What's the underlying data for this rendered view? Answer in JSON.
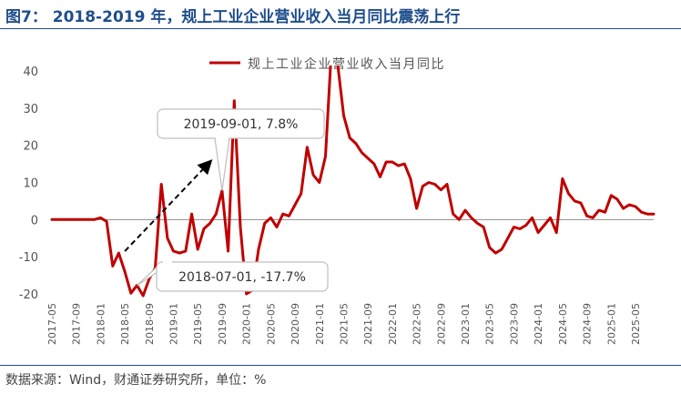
{
  "header": {
    "title": "图7： 2018-2019 年，规上工业企业营业收入当月同比震荡上行"
  },
  "footer": {
    "source": "数据来源：Wind，财通证券研究所，单位：%"
  },
  "colors": {
    "series": "#c00000",
    "title": "#1f4e8c",
    "text": "#555555",
    "callout_border": "#bfbfbf"
  },
  "chart_data": {
    "type": "line",
    "title": "",
    "xlabel": "",
    "ylabel": "",
    "ylim": [
      -20,
      40
    ],
    "yticks": [
      -20,
      -10,
      0,
      10,
      20,
      30,
      40
    ],
    "grid": false,
    "legend_position": "top",
    "xticks": [
      "2017-05",
      "2017-09",
      "2018-01",
      "2018-05",
      "2018-09",
      "2019-01",
      "2019-05",
      "2019-09",
      "2020-01",
      "2020-05",
      "2020-09",
      "2021-01",
      "2021-05",
      "2021-09",
      "2022-01",
      "2022-05",
      "2022-09",
      "2023-01",
      "2023-05",
      "2023-09",
      "2024-01",
      "2024-05",
      "2024-09",
      "2025-01",
      "2025-05"
    ],
    "series": [
      {
        "name": "规上工业企业营业收入当月同比",
        "color": "#c00000",
        "points": [
          [
            "2017-05",
            0
          ],
          [
            "2017-06",
            0
          ],
          [
            "2017-07",
            0
          ],
          [
            "2017-08",
            0
          ],
          [
            "2017-09",
            0
          ],
          [
            "2017-10",
            0
          ],
          [
            "2017-11",
            0
          ],
          [
            "2017-12",
            0
          ],
          [
            "2018-01",
            0.5
          ],
          [
            "2018-02",
            -0.5
          ],
          [
            "2018-03",
            -12.5
          ],
          [
            "2018-04",
            -9
          ],
          [
            "2018-05",
            -14
          ],
          [
            "2018-06",
            -19.8
          ],
          [
            "2018-07",
            -17.7
          ],
          [
            "2018-08",
            -20.5
          ],
          [
            "2018-09",
            -16
          ],
          [
            "2018-10",
            -13
          ],
          [
            "2018-11",
            9.5
          ],
          [
            "2018-12",
            -5
          ],
          [
            "2019-01",
            -8.5
          ],
          [
            "2019-02",
            -9
          ],
          [
            "2019-03",
            -8.5
          ],
          [
            "2019-04",
            1.5
          ],
          [
            "2019-05",
            -8
          ],
          [
            "2019-06",
            -2.5
          ],
          [
            "2019-07",
            -1
          ],
          [
            "2019-08",
            1.5
          ],
          [
            "2019-09",
            7.8
          ],
          [
            "2019-10",
            -8.5
          ],
          [
            "2019-11",
            32
          ],
          [
            "2019-12",
            -2
          ],
          [
            "2020-01",
            -20
          ],
          [
            "2020-02",
            -19
          ],
          [
            "2020-03",
            -8
          ],
          [
            "2020-04",
            -1
          ],
          [
            "2020-05",
            0.5
          ],
          [
            "2020-06",
            -2
          ],
          [
            "2020-07",
            1.5
          ],
          [
            "2020-08",
            1
          ],
          [
            "2020-09",
            4
          ],
          [
            "2020-10",
            7
          ],
          [
            "2020-11",
            19.5
          ],
          [
            "2020-12",
            12
          ],
          [
            "2021-01",
            10
          ],
          [
            "2021-02",
            17
          ],
          [
            "2021-03",
            46
          ],
          [
            "2021-04",
            42
          ],
          [
            "2021-05",
            28
          ],
          [
            "2021-06",
            22
          ],
          [
            "2021-07",
            20.5
          ],
          [
            "2021-08",
            18
          ],
          [
            "2021-09",
            16.5
          ],
          [
            "2021-10",
            15
          ],
          [
            "2021-11",
            11.5
          ],
          [
            "2021-12",
            15.5
          ],
          [
            "2022-01",
            15.5
          ],
          [
            "2022-02",
            14.5
          ],
          [
            "2022-03",
            15
          ],
          [
            "2022-04",
            11
          ],
          [
            "2022-05",
            3
          ],
          [
            "2022-06",
            9
          ],
          [
            "2022-07",
            10
          ],
          [
            "2022-08",
            9.5
          ],
          [
            "2022-09",
            8
          ],
          [
            "2022-10",
            9.5
          ],
          [
            "2022-11",
            1.5
          ],
          [
            "2022-12",
            0
          ],
          [
            "2023-01",
            2.5
          ],
          [
            "2023-02",
            0.5
          ],
          [
            "2023-03",
            -1
          ],
          [
            "2023-04",
            -2
          ],
          [
            "2023-05",
            -7.5
          ],
          [
            "2023-06",
            -9
          ],
          [
            "2023-07",
            -8
          ],
          [
            "2023-08",
            -5
          ],
          [
            "2023-09",
            -2
          ],
          [
            "2023-10",
            -2.5
          ],
          [
            "2023-11",
            -1.5
          ],
          [
            "2023-12",
            0.5
          ],
          [
            "2024-01",
            -3.5
          ],
          [
            "2024-02",
            -1.5
          ],
          [
            "2024-03",
            0.5
          ],
          [
            "2024-04",
            -3.5
          ],
          [
            "2024-05",
            11
          ],
          [
            "2024-06",
            7
          ],
          [
            "2024-07",
            5
          ],
          [
            "2024-08",
            4.5
          ],
          [
            "2024-09",
            1
          ],
          [
            "2024-10",
            0.5
          ],
          [
            "2024-11",
            2.5
          ],
          [
            "2024-12",
            2
          ],
          [
            "2025-01",
            6.5
          ],
          [
            "2025-02",
            5.5
          ],
          [
            "2025-03",
            3
          ],
          [
            "2025-04",
            4
          ],
          [
            "2025-05",
            3.5
          ],
          [
            "2025-06",
            2
          ],
          [
            "2025-07",
            1.5
          ],
          [
            "2025-08",
            1.5
          ]
        ]
      }
    ],
    "annotations": [
      {
        "label": "2019-09-01, 7.8%",
        "x": "2019-09",
        "y": 7.8
      },
      {
        "label": "2018-07-01, -17.7%",
        "x": "2018-07",
        "y": -17.7
      }
    ],
    "trend_arrow": {
      "from": [
        "2018-05",
        -8.5
      ],
      "to": [
        "2019-07",
        15.5
      ]
    }
  }
}
